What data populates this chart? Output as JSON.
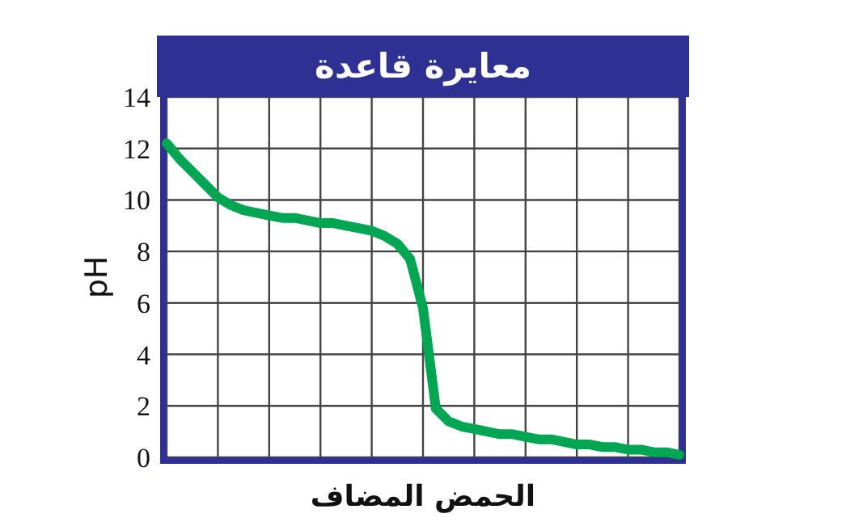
{
  "chart_data": {
    "type": "line",
    "title": "معايرة قاعدة",
    "xlabel": "الحمض المضاف",
    "ylabel": "pH",
    "categories": [
      null,
      null,
      null,
      null,
      null,
      null,
      null,
      null,
      null,
      null,
      null,
      null,
      null,
      null,
      null,
      null,
      null,
      null,
      null,
      null,
      null,
      null,
      null,
      null,
      null,
      null,
      null,
      null,
      null,
      null,
      null,
      null,
      null,
      null,
      null,
      null,
      null,
      null,
      null,
      null,
      null
    ],
    "values": [
      12.2,
      11.6,
      11.1,
      10.6,
      10.1,
      9.8,
      9.6,
      9.5,
      9.4,
      9.3,
      9.3,
      9.2,
      9.1,
      9.1,
      9.0,
      8.9,
      8.8,
      8.6,
      8.3,
      7.7,
      5.8,
      1.9,
      1.4,
      1.2,
      1.1,
      1.0,
      0.9,
      0.9,
      0.8,
      0.7,
      0.7,
      0.6,
      0.5,
      0.5,
      0.4,
      0.4,
      0.3,
      0.3,
      0.2,
      0.2,
      0.1
    ],
    "color": "#00a651",
    "ylim": [
      0,
      14
    ],
    "yticks": [
      0,
      2,
      4,
      6,
      8,
      10,
      12,
      14
    ],
    "grid": true
  }
}
